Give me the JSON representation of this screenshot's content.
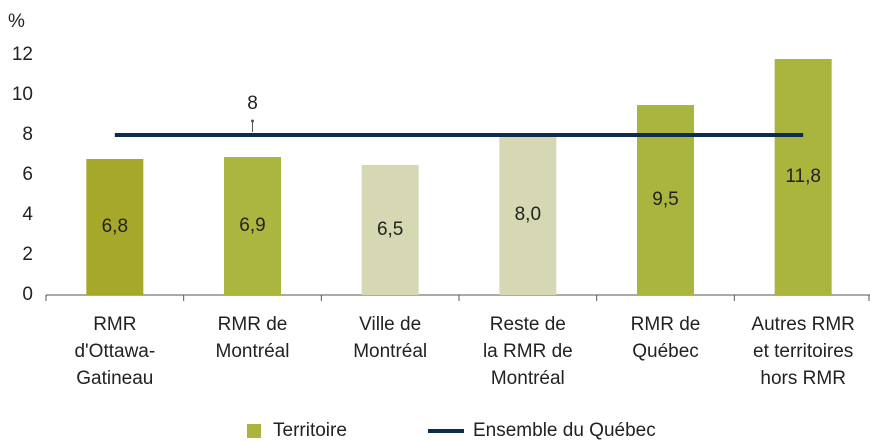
{
  "chart_data": {
    "type": "bar",
    "y_label": "%",
    "categories": [
      [
        "RMR",
        "d'Ottawa-",
        "Gatineau"
      ],
      [
        "RMR de",
        "Montréal"
      ],
      [
        "Ville de",
        "Montréal"
      ],
      [
        "Reste de",
        "la RMR de",
        "Montréal"
      ],
      [
        "RMR de",
        "Québec"
      ],
      [
        "Autres RMR",
        "et territoires",
        "hors RMR"
      ]
    ],
    "series": [
      {
        "name": "Territoire",
        "color": "#a9b53c",
        "colors": [
          "#a6a82a",
          "#abb63e",
          "#d5d8b2",
          "#d5d8b2",
          "#a9b53c",
          "#a9b53c"
        ],
        "values": [
          6.8,
          6.9,
          6.5,
          8.0,
          9.5,
          11.8
        ],
        "value_labels": [
          "6,8",
          "6,9",
          "6,5",
          "8,0",
          "9,5",
          "11,8"
        ]
      }
    ],
    "reference_line": {
      "name": "Ensemble du Québec",
      "value": 8,
      "color": "#0e2c4e"
    },
    "ylim": [
      0,
      12
    ],
    "yticks": [
      0,
      2,
      4,
      6,
      8,
      10,
      12
    ],
    "grid": false
  }
}
